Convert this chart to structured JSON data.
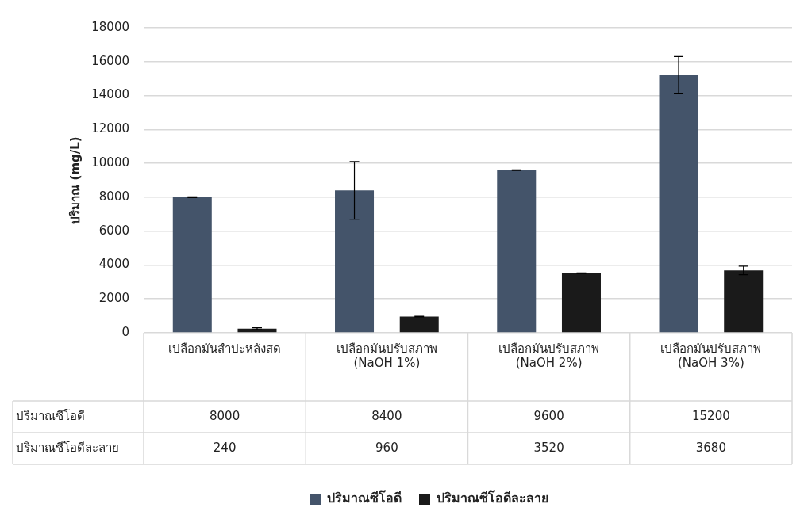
{
  "chart_data": {
    "type": "bar",
    "ylabel": "ปริมาณ (mg/L)",
    "categories": [
      "เปลือกมันสำปะหลังสด",
      "เปลือกมันปรับสภาพ (NaOH 1%)",
      "เปลือกมันปรับสภาพ (NaOH 2%)",
      "เปลือกมันปรับสภาพ (NaOH 3%)"
    ],
    "series": [
      {
        "name": "ปริมาณซีโอดี",
        "color": "#44546a",
        "values": [
          8000,
          8400,
          9600,
          15200
        ],
        "errors": [
          20,
          1700,
          20,
          1100
        ]
      },
      {
        "name": "ปริมาณซีโอดีละลาย",
        "color": "#1a1a1a",
        "values": [
          240,
          960,
          3520,
          3680
        ],
        "errors": [
          60,
          20,
          20,
          250
        ]
      }
    ],
    "ylim": [
      0,
      18000
    ],
    "yticks": [
      0,
      2000,
      4000,
      6000,
      8000,
      10000,
      12000,
      14000,
      16000,
      18000
    ],
    "grid": "y",
    "legend": "bottom",
    "data_labels": true
  }
}
